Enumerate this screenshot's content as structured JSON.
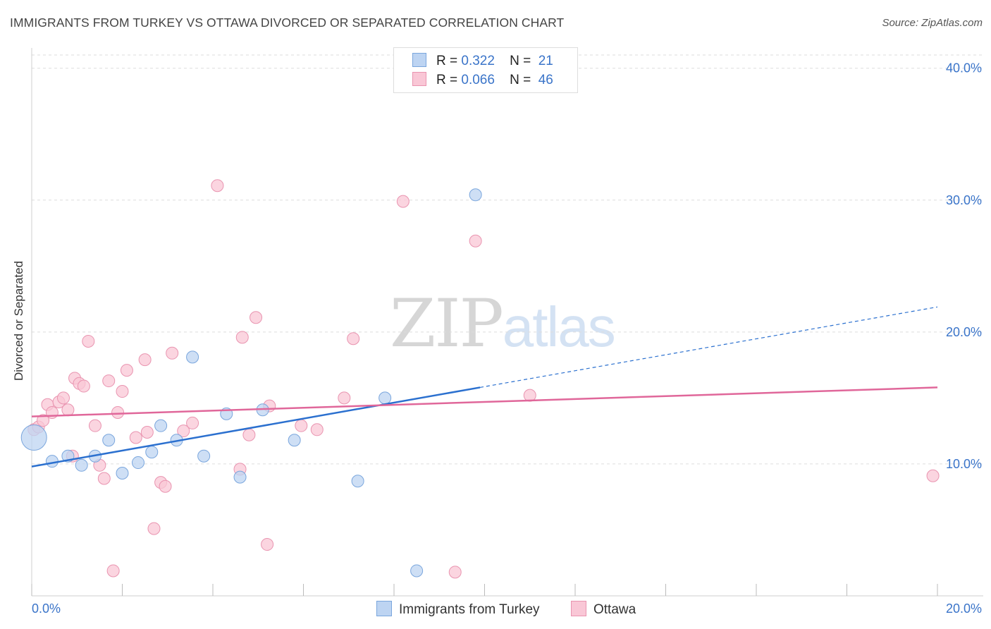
{
  "title": "IMMIGRANTS FROM TURKEY VS OTTAWA DIVORCED OR SEPARATED CORRELATION CHART",
  "source": "Source: ZipAtlas.com",
  "watermark": {
    "zip": "ZIP",
    "atlas": "atlas"
  },
  "legend": {
    "r_label": "R =",
    "n_label": "N =",
    "rows": [
      {
        "r": "0.322",
        "n": "21"
      },
      {
        "r": "0.066",
        "n": "46"
      }
    ]
  },
  "colors": {
    "blue_fill": "#bdd4f2",
    "blue_stroke": "#7aa6dd",
    "blue_line": "#2b70cf",
    "pink_fill": "#f9c7d6",
    "pink_stroke": "#e994b0",
    "pink_line": "#e0679a",
    "axis_text": "#3a74c9",
    "grid": "#dddddd"
  },
  "chart_data": {
    "type": "scatter",
    "title": "IMMIGRANTS FROM TURKEY VS OTTAWA DIVORCED OR SEPARATED CORRELATION CHART",
    "xlabel": "",
    "ylabel": "Divorced or Separated",
    "xlim": [
      0,
      20
    ],
    "ylim": [
      0,
      41
    ],
    "x_tick_labels": [
      "0.0%",
      "20.0%"
    ],
    "y_tick_values": [
      10,
      20,
      30,
      40
    ],
    "y_tick_labels": [
      "10.0%",
      "20.0%",
      "30.0%",
      "40.0%"
    ],
    "grid": true,
    "legend_position": "bottom",
    "series": [
      {
        "name": "Immigrants from Turkey",
        "color": "blue",
        "r": 0.322,
        "n": 21,
        "points": [
          [
            0.05,
            12.0,
            1
          ],
          [
            0.45,
            10.2,
            0
          ],
          [
            0.8,
            10.6,
            0
          ],
          [
            1.1,
            9.9,
            0
          ],
          [
            1.4,
            10.6,
            0
          ],
          [
            1.7,
            11.8,
            0
          ],
          [
            2.0,
            9.3,
            0
          ],
          [
            2.35,
            10.1,
            0
          ],
          [
            2.65,
            10.9,
            0
          ],
          [
            2.85,
            12.9,
            0
          ],
          [
            3.2,
            11.8,
            0
          ],
          [
            3.55,
            18.1,
            0
          ],
          [
            3.8,
            10.6,
            0
          ],
          [
            4.3,
            13.8,
            0
          ],
          [
            4.6,
            9.0,
            0
          ],
          [
            5.1,
            14.1,
            0
          ],
          [
            5.8,
            11.8,
            0
          ],
          [
            7.2,
            8.7,
            0
          ],
          [
            7.8,
            15.0,
            0
          ],
          [
            8.5,
            1.9,
            0
          ],
          [
            9.8,
            30.4,
            0
          ]
        ],
        "trend": {
          "x0": 0.0,
          "y0": 9.8,
          "x1": 9.9,
          "y1": 15.8,
          "dash_to_x": 20.0,
          "dash_to_y": 21.9
        }
      },
      {
        "name": "Ottawa",
        "color": "pink",
        "r": 0.066,
        "n": 46,
        "points": [
          [
            0.05,
            12.6
          ],
          [
            0.15,
            12.8
          ],
          [
            0.25,
            13.3
          ],
          [
            0.35,
            14.5
          ],
          [
            0.45,
            13.9
          ],
          [
            0.6,
            14.7
          ],
          [
            0.7,
            15.0
          ],
          [
            0.8,
            14.1
          ],
          [
            0.9,
            10.6
          ],
          [
            0.95,
            16.5
          ],
          [
            1.05,
            16.1
          ],
          [
            1.15,
            15.9
          ],
          [
            1.25,
            19.3
          ],
          [
            1.4,
            12.9
          ],
          [
            1.5,
            9.9
          ],
          [
            1.6,
            8.9
          ],
          [
            1.7,
            16.3
          ],
          [
            1.8,
            1.9
          ],
          [
            1.9,
            13.9
          ],
          [
            2.0,
            15.5
          ],
          [
            2.1,
            17.1
          ],
          [
            2.3,
            12.0
          ],
          [
            2.5,
            17.9
          ],
          [
            2.55,
            12.4
          ],
          [
            2.7,
            5.1
          ],
          [
            2.85,
            8.6
          ],
          [
            2.95,
            8.3
          ],
          [
            3.1,
            18.4
          ],
          [
            3.35,
            12.5
          ],
          [
            3.55,
            13.1
          ],
          [
            4.1,
            31.1
          ],
          [
            4.6,
            9.6
          ],
          [
            4.65,
            19.6
          ],
          [
            4.8,
            12.2
          ],
          [
            4.95,
            21.1
          ],
          [
            5.2,
            3.9
          ],
          [
            5.25,
            14.4
          ],
          [
            5.95,
            12.9
          ],
          [
            6.3,
            12.6
          ],
          [
            6.9,
            15.0
          ],
          [
            7.1,
            19.5
          ],
          [
            8.2,
            29.9
          ],
          [
            9.35,
            1.8
          ],
          [
            9.8,
            26.9
          ],
          [
            11.0,
            15.2
          ],
          [
            19.9,
            9.1
          ]
        ],
        "trend": {
          "x0": 0.0,
          "y0": 13.6,
          "x1": 20.0,
          "y1": 15.8
        }
      }
    ]
  }
}
